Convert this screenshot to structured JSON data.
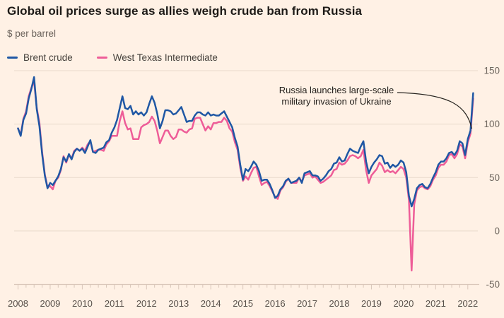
{
  "header": {
    "title": "Global oil prices surge as allies weigh crude ban from Russia",
    "subtitle": "$ per barrel"
  },
  "annotation": {
    "line1": "Russia launches large-scale",
    "line2": "military invasion of Ukraine"
  },
  "colors": {
    "background": "#FFF1E5",
    "brent_blue": "#1f57a4",
    "wti_pink": "#ee5d98",
    "gridline": "#e8d9cb",
    "axis_line": "#d9c6b9",
    "text_dark": "#1d1a17",
    "text_muted": "#6b635c"
  },
  "chart_data": {
    "type": "line",
    "title": "Global oil prices surge as allies weigh crude ban from Russia",
    "ylabel": "$ per barrel",
    "ylim": [
      -50,
      150
    ],
    "y_ticks": [
      150,
      100,
      50,
      0,
      -50
    ],
    "x_start_year": 2008,
    "x_step_months": 1,
    "x_minor_tick_every_months": 3,
    "x_tick_labels": [
      "2008",
      "2009",
      "2010",
      "2011",
      "2012",
      "2013",
      "2014",
      "2015",
      "2016",
      "2017",
      "2018",
      "2019",
      "2020",
      "2021",
      "2022"
    ],
    "legend_position": "top-left",
    "grid": true,
    "series": [
      {
        "name": "Brent crude",
        "color": "#1f57a4",
        "values": [
          96,
          89,
          104,
          110,
          124,
          133,
          144,
          114,
          98,
          72,
          52,
          40,
          45,
          43,
          47,
          51,
          58,
          69,
          65,
          72,
          67,
          74,
          77,
          75,
          77,
          73,
          79,
          85,
          74,
          73,
          76,
          77,
          78,
          83,
          85,
          92,
          97,
          104,
          115,
          126,
          115,
          114,
          117,
          109,
          112,
          109,
          111,
          108,
          111,
          119,
          126,
          120,
          110,
          96,
          103,
          113,
          113,
          112,
          109,
          110,
          113,
          116,
          109,
          102,
          103,
          103,
          108,
          111,
          111,
          109,
          108,
          111,
          108,
          109,
          108,
          108,
          110,
          112,
          107,
          102,
          97,
          87,
          79,
          62,
          48,
          58,
          56,
          60,
          65,
          62,
          56,
          47,
          48,
          48,
          44,
          38,
          31,
          33,
          39,
          42,
          47,
          49,
          45,
          46,
          47,
          50,
          45,
          54,
          55,
          56,
          52,
          52,
          51,
          47,
          49,
          52,
          56,
          58,
          63,
          64,
          69,
          65,
          66,
          72,
          77,
          75,
          74,
          73,
          79,
          84,
          65,
          54,
          60,
          64,
          67,
          71,
          70,
          63,
          64,
          59,
          62,
          60,
          62,
          66,
          64,
          55,
          33,
          23,
          30,
          40,
          43,
          44,
          41,
          40,
          44,
          50,
          55,
          62,
          65,
          65,
          68,
          73,
          74,
          71,
          75,
          84,
          82,
          71,
          86,
          94,
          129
        ]
      },
      {
        "name": "West Texas Intermediate",
        "color": "#ee5d98",
        "values": [
          96,
          90,
          105,
          112,
          126,
          134,
          140,
          115,
          101,
          74,
          53,
          41,
          42,
          39,
          47,
          50,
          57,
          70,
          64,
          71,
          68,
          75,
          77,
          75,
          78,
          75,
          81,
          84,
          74,
          75,
          76,
          76,
          75,
          81,
          84,
          89,
          89,
          89,
          103,
          112,
          101,
          95,
          96,
          86,
          86,
          86,
          97,
          99,
          100,
          102,
          107,
          103,
          94,
          82,
          88,
          94,
          94,
          89,
          86,
          88,
          95,
          95,
          93,
          92,
          95,
          96,
          105,
          106,
          106,
          100,
          94,
          98,
          95,
          101,
          101,
          102,
          102,
          106,
          103,
          96,
          93,
          83,
          76,
          59,
          47,
          51,
          48,
          54,
          59,
          60,
          51,
          43,
          45,
          46,
          42,
          37,
          32,
          30,
          38,
          41,
          46,
          49,
          45,
          45,
          45,
          50,
          46,
          52,
          53,
          54,
          50,
          51,
          48,
          45,
          46,
          48,
          50,
          52,
          57,
          58,
          64,
          62,
          63,
          66,
          70,
          71,
          70,
          68,
          70,
          76,
          57,
          45,
          52,
          55,
          58,
          64,
          61,
          55,
          57,
          55,
          56,
          54,
          57,
          60,
          58,
          50,
          29,
          -37,
          25,
          38,
          41,
          42,
          40,
          39,
          42,
          48,
          52,
          59,
          62,
          62,
          65,
          71,
          72,
          68,
          72,
          81,
          79,
          68,
          83,
          91,
          124
        ]
      }
    ]
  }
}
